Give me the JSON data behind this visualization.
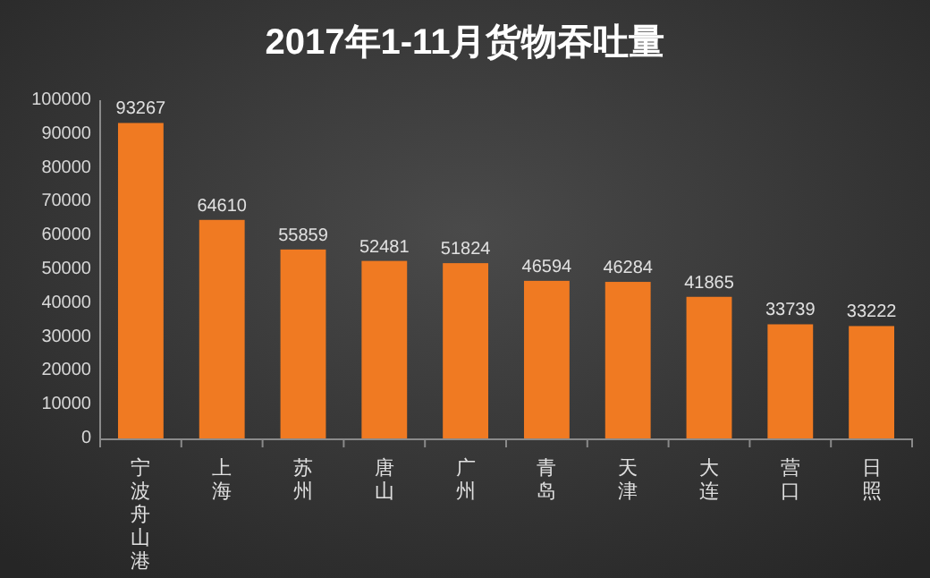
{
  "chart_data": {
    "type": "bar",
    "title": "2017年1-11月货物吞吐量",
    "categories": [
      "宁波舟山港",
      "上海",
      "苏州",
      "唐山",
      "广州",
      "青岛",
      "天津",
      "大连",
      "营口",
      "日照"
    ],
    "values": [
      93267,
      64610,
      55859,
      52481,
      51824,
      46594,
      46284,
      41865,
      33739,
      33222
    ],
    "color": "#f07a22",
    "data_labels": true,
    "ylim": [
      0,
      100000
    ],
    "yticks": [
      0,
      10000,
      20000,
      30000,
      40000,
      50000,
      60000,
      70000,
      80000,
      90000,
      100000
    ]
  }
}
